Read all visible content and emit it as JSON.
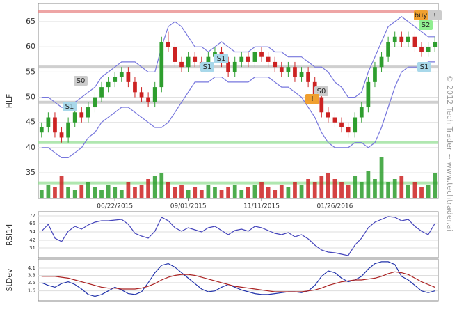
{
  "watermark": "© 2012 Tech Trader ~ www.techtrader.ai",
  "chart_data": [
    {
      "type": "candlestick",
      "ylabel": "HLF",
      "categories": [
        null,
        null,
        null,
        null,
        null,
        null,
        null,
        null,
        null,
        null,
        null,
        "06/22/2015",
        null,
        null,
        null,
        null,
        null,
        null,
        null,
        null,
        null,
        null,
        "09/01/2015",
        null,
        null,
        null,
        null,
        null,
        null,
        null,
        null,
        null,
        null,
        "11/11/2015",
        null,
        null,
        null,
        null,
        null,
        null,
        null,
        null,
        null,
        null,
        "01/26/2016",
        null,
        null,
        null,
        null,
        null,
        null,
        null,
        null,
        null,
        null,
        null,
        null,
        null,
        null,
        null
      ],
      "open": [
        43,
        44,
        46,
        43,
        42,
        45,
        47,
        46,
        48,
        50,
        52,
        53,
        54,
        55,
        53,
        51,
        50,
        49,
        52,
        61,
        60,
        57,
        56,
        58,
        57,
        56,
        58,
        59,
        57,
        55,
        57,
        58,
        57,
        59,
        58,
        57,
        56,
        55,
        56,
        54,
        55,
        53,
        50,
        47,
        46,
        45,
        44,
        43,
        46,
        48,
        53,
        56,
        58,
        61,
        62,
        61,
        62,
        60,
        59,
        60
      ],
      "high": [
        45,
        47,
        47,
        44,
        46,
        48,
        48,
        49,
        51,
        53,
        54,
        55,
        56,
        56,
        54,
        52,
        51,
        53,
        62,
        63,
        61,
        58,
        59,
        59,
        58,
        59,
        60,
        60,
        58,
        58,
        59,
        59,
        60,
        60,
        59,
        58,
        57,
        57,
        57,
        56,
        56,
        54,
        51,
        48,
        47,
        46,
        45,
        47,
        49,
        54,
        57,
        59,
        62,
        63,
        63,
        63,
        63,
        61,
        61,
        62
      ],
      "low": [
        42,
        43,
        42,
        41,
        41,
        44,
        45,
        45,
        47,
        49,
        51,
        52,
        53,
        52,
        50,
        49,
        48,
        48,
        51,
        59,
        56,
        55,
        55,
        56,
        55,
        55,
        57,
        56,
        54,
        54,
        56,
        56,
        56,
        57,
        56,
        55,
        54,
        54,
        53,
        53,
        52,
        49,
        46,
        45,
        44,
        43,
        42,
        42,
        45,
        47,
        52,
        55,
        57,
        60,
        60,
        60,
        59,
        58,
        58,
        59
      ],
      "close": [
        44,
        46,
        43,
        42,
        45,
        47,
        46,
        48,
        50,
        52,
        53,
        54,
        55,
        53,
        51,
        50,
        49,
        52,
        61,
        60,
        57,
        56,
        58,
        57,
        56,
        58,
        59,
        57,
        55,
        57,
        58,
        57,
        59,
        58,
        57,
        56,
        55,
        56,
        54,
        55,
        53,
        50,
        47,
        46,
        45,
        44,
        43,
        46,
        48,
        53,
        56,
        58,
        61,
        62,
        61,
        62,
        60,
        59,
        60,
        61
      ],
      "volume": [
        3,
        5,
        4,
        8,
        4,
        3,
        5,
        6,
        4,
        3,
        5,
        4,
        3,
        6,
        4,
        5,
        7,
        8,
        9,
        6,
        4,
        5,
        3,
        4,
        3,
        5,
        4,
        3,
        4,
        5,
        3,
        4,
        5,
        6,
        4,
        3,
        5,
        4,
        6,
        5,
        7,
        6,
        8,
        9,
        7,
        6,
        5,
        8,
        6,
        10,
        7,
        15,
        6,
        7,
        8,
        5,
        6,
        4,
        5,
        9
      ],
      "upper_band": [
        50,
        50,
        49,
        48,
        48,
        49,
        50,
        51,
        52,
        54,
        55,
        56,
        57,
        57,
        57,
        56,
        55,
        55,
        60,
        64,
        65,
        64,
        62,
        60,
        60,
        59,
        60,
        61,
        60,
        59,
        59,
        59,
        60,
        60,
        60,
        59,
        59,
        58,
        58,
        58,
        57,
        56,
        56,
        55,
        53,
        52,
        50,
        50,
        51,
        55,
        58,
        61,
        64,
        65,
        66,
        65,
        64,
        63,
        62,
        62
      ],
      "lower_band": [
        40,
        40,
        39,
        38,
        38,
        39,
        40,
        42,
        43,
        45,
        46,
        47,
        48,
        48,
        47,
        46,
        45,
        44,
        44,
        45,
        47,
        49,
        51,
        53,
        53,
        53,
        54,
        54,
        53,
        53,
        53,
        53,
        54,
        54,
        54,
        53,
        52,
        52,
        51,
        50,
        48,
        46,
        43,
        41,
        40,
        40,
        40,
        41,
        41,
        40,
        41,
        44,
        48,
        52,
        55,
        56,
        56,
        56,
        57,
        57
      ],
      "band_color": "#7777dd",
      "up_color": "#2e9e2e",
      "down_color": "#cc2222",
      "levels": [
        {
          "value": 67,
          "color": "#e88080"
        },
        {
          "value": 56,
          "color": "#bbbbbb"
        },
        {
          "value": 49,
          "color": "#bbbbbb"
        },
        {
          "value": 41,
          "color": "#90dd90"
        },
        {
          "value": 33,
          "color": "#90dd90"
        }
      ],
      "annotations": [
        "S1",
        "S0",
        "S1",
        "S1",
        "S0",
        "buy",
        "S2",
        "S1",
        "!",
        "!"
      ],
      "ylim": [
        29.9,
        68.6
      ],
      "yticks": [
        35,
        40,
        45,
        50,
        55,
        60,
        65
      ],
      "grid": true
    },
    {
      "type": "line",
      "ylabel": "RSI14",
      "values": [
        55,
        65,
        45,
        40,
        55,
        62,
        58,
        64,
        68,
        70,
        70,
        71,
        72,
        65,
        52,
        48,
        45,
        55,
        75,
        70,
        60,
        55,
        60,
        57,
        54,
        60,
        62,
        56,
        50,
        56,
        58,
        55,
        62,
        60,
        56,
        52,
        50,
        53,
        47,
        50,
        44,
        35,
        28,
        25,
        24,
        22,
        20,
        35,
        45,
        60,
        68,
        72,
        76,
        75,
        70,
        72,
        62,
        55,
        50,
        66
      ],
      "color": "#4444bb",
      "ylim": [
        17,
        83
      ],
      "yticks": [
        31,
        42,
        54,
        66,
        77
      ],
      "grid": true
    },
    {
      "type": "line",
      "ylabel": "StDev",
      "series": [
        {
          "color": "#2233aa",
          "values": [
            2.5,
            2.2,
            2.0,
            2.4,
            2.6,
            2.3,
            1.8,
            1.2,
            1.0,
            1.2,
            1.6,
            2.0,
            1.7,
            1.3,
            1.2,
            1.5,
            2.5,
            3.6,
            4.4,
            4.6,
            4.2,
            3.6,
            3.0,
            2.4,
            1.8,
            1.5,
            1.6,
            2.0,
            2.3,
            2.0,
            1.7,
            1.5,
            1.3,
            1.2,
            1.2,
            1.3,
            1.4,
            1.5,
            1.5,
            1.4,
            1.6,
            2.2,
            3.2,
            3.8,
            3.6,
            3.0,
            2.6,
            2.8,
            3.2,
            4.0,
            4.6,
            4.8,
            4.8,
            4.5,
            3.2,
            2.8,
            2.2,
            1.6,
            1.4,
            1.6
          ]
        },
        {
          "color": "#aa2222",
          "values": [
            3.2,
            3.2,
            3.2,
            3.1,
            3.0,
            2.8,
            2.6,
            2.4,
            2.2,
            2.0,
            1.9,
            1.9,
            1.8,
            1.8,
            1.8,
            1.9,
            2.1,
            2.4,
            2.8,
            3.1,
            3.3,
            3.4,
            3.4,
            3.3,
            3.1,
            2.9,
            2.7,
            2.5,
            2.3,
            2.1,
            2.0,
            1.9,
            1.8,
            1.7,
            1.6,
            1.5,
            1.5,
            1.5,
            1.5,
            1.5,
            1.6,
            1.7,
            1.9,
            2.2,
            2.4,
            2.6,
            2.7,
            2.8,
            2.8,
            2.9,
            3.0,
            3.2,
            3.5,
            3.7,
            3.6,
            3.4,
            3.0,
            2.6,
            2.3,
            2.0
          ]
        }
      ],
      "ylim": [
        0.5,
        5.1
      ],
      "yticks": [
        1.6,
        2.5,
        3.3,
        4.1
      ],
      "grid": true
    }
  ]
}
